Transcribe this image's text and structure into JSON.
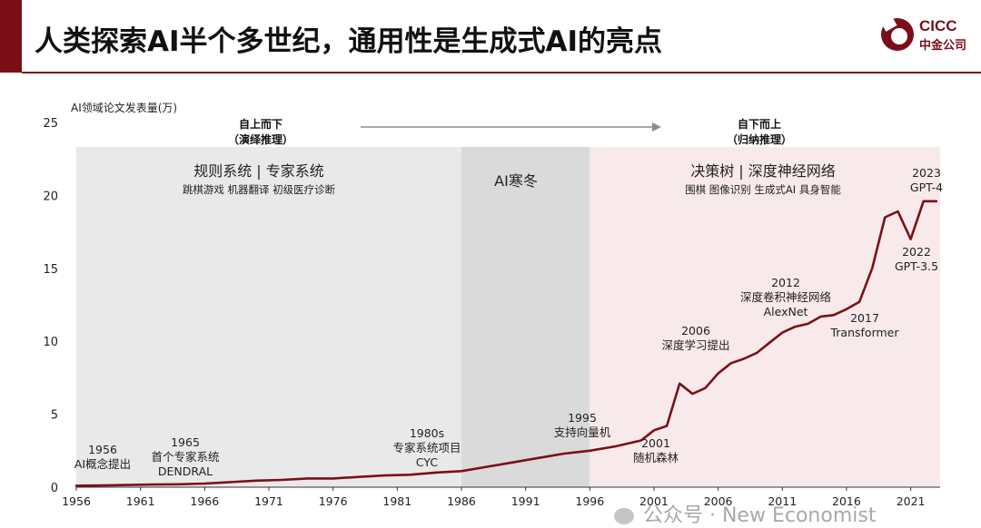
{
  "header": {
    "title": "人类探索AI半个多世纪，通用性是生成式AI的亮点",
    "logo_text": "CICC",
    "logo_subtext": "中金公司"
  },
  "colors": {
    "accent": "#7a0f1a",
    "line": "#7a0f1a",
    "shade_left": "#e9e9e9",
    "shade_mid": "#dadada",
    "shade_right": "#f8eaea"
  },
  "chart_data": {
    "type": "line",
    "ylabel": "AI领域论文发表量(万)",
    "ylim": [
      0,
      25
    ],
    "yticks": [
      0,
      5,
      10,
      15,
      20,
      25
    ],
    "xlim": [
      1956,
      2024
    ],
    "xticks": [
      1956,
      1961,
      1966,
      1971,
      1976,
      1981,
      1986,
      1991,
      1996,
      2001,
      2006,
      2011,
      2016,
      2021
    ],
    "series": [
      {
        "x": [
          1956,
          1958,
          1960,
          1962,
          1964,
          1966,
          1968,
          1970,
          1972,
          1974,
          1976,
          1978,
          1980,
          1982,
          1984,
          1986,
          1988,
          1990,
          1992,
          1994,
          1996,
          1998,
          2000,
          2001,
          2002,
          2003,
          2004,
          2005,
          2006,
          2007,
          2008,
          2009,
          2010,
          2011,
          2012,
          2013,
          2014,
          2015,
          2016,
          2017,
          2018,
          2019,
          2020,
          2021,
          2022,
          2023
        ],
        "y": [
          0.1,
          0.12,
          0.15,
          0.18,
          0.2,
          0.25,
          0.35,
          0.45,
          0.5,
          0.6,
          0.6,
          0.7,
          0.8,
          0.85,
          1.0,
          1.1,
          1.4,
          1.7,
          2.0,
          2.3,
          2.5,
          2.8,
          3.2,
          3.9,
          4.2,
          7.1,
          6.4,
          6.8,
          7.8,
          8.5,
          8.8,
          9.2,
          9.9,
          10.6,
          11.0,
          11.2,
          11.7,
          11.8,
          12.2,
          12.7,
          15.0,
          18.5,
          18.9,
          17.0,
          19.6,
          19.6
        ]
      }
    ],
    "eras": [
      {
        "start": 1956,
        "end": 1986,
        "title": "规则系统 | 专家系统",
        "subtitle": "跳棋游戏  机器翻译  初级医疗诊断"
      },
      {
        "start": 1986,
        "end": 1996,
        "title": "AI寒冬",
        "subtitle": ""
      },
      {
        "start": 1996,
        "end": 2024,
        "title": "决策树 | 深度神经网络",
        "subtitle": "围棋  图像识别  生成式AI  具身智能"
      }
    ],
    "paradigms": [
      {
        "line1": "自上而下",
        "line2": "（演绎推理）"
      },
      {
        "line1": "自下而上",
        "line2": "（归纳推理）"
      }
    ],
    "annotations": [
      {
        "year": 1956,
        "lines": [
          "1956",
          "AI概念提出"
        ]
      },
      {
        "year": 1965,
        "lines": [
          "1965",
          "首个专家系统",
          "DENDRAL"
        ]
      },
      {
        "year": 1980,
        "lines": [
          "1980s",
          "专家系统项目",
          "CYC"
        ]
      },
      {
        "year": 1995,
        "lines": [
          "1995",
          "支持向量机"
        ]
      },
      {
        "year": 2001,
        "lines": [
          "2001",
          "随机森林"
        ]
      },
      {
        "year": 2006,
        "lines": [
          "2006",
          "深度学习提出"
        ]
      },
      {
        "year": 2012,
        "lines": [
          "2012",
          "深度卷积神经网络",
          "AlexNet"
        ]
      },
      {
        "year": 2017,
        "lines": [
          "2017",
          "Transformer"
        ]
      },
      {
        "year": 2022,
        "lines": [
          "2022",
          "GPT-3.5"
        ]
      },
      {
        "year": 2023,
        "lines": [
          "2023",
          "GPT-4"
        ]
      }
    ]
  },
  "watermark": "公众号 · New Economist"
}
